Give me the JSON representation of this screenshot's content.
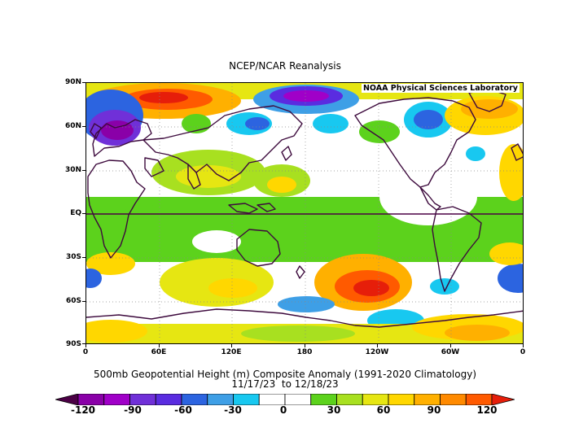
{
  "header": {
    "title": "NCEP/NCAR Reanalysis"
  },
  "map": {
    "credit": "NOAA Physical Sciences Laboratory",
    "lat_labels": [
      "90N",
      "60N",
      "30N",
      "EQ",
      "30S",
      "60S",
      "90S"
    ],
    "lon_labels": [
      "0",
      "60E",
      "120E",
      "180",
      "120W",
      "60W",
      "0"
    ]
  },
  "caption": {
    "line1": "500mb Geopotential Height (m) Composite Anomaly (1991-2020 Climatology)",
    "line2": "11/17/23  to 12/18/23"
  },
  "colorbar": {
    "labels": [
      "-120",
      "-90",
      "-60",
      "-30",
      "0",
      "30",
      "60",
      "90",
      "120"
    ],
    "colors": [
      "#4b0045",
      "#8a00a8",
      "#a000c8",
      "#7030d8",
      "#5a2ce0",
      "#2c64e0",
      "#3e9fe6",
      "#18c8f0",
      "#ffffff",
      "#ffffff",
      "#5cd21c",
      "#a8e020",
      "#e6e612",
      "#ffd700",
      "#ffb000",
      "#ff8a00",
      "#ff5a00",
      "#e61e0a"
    ]
  }
}
